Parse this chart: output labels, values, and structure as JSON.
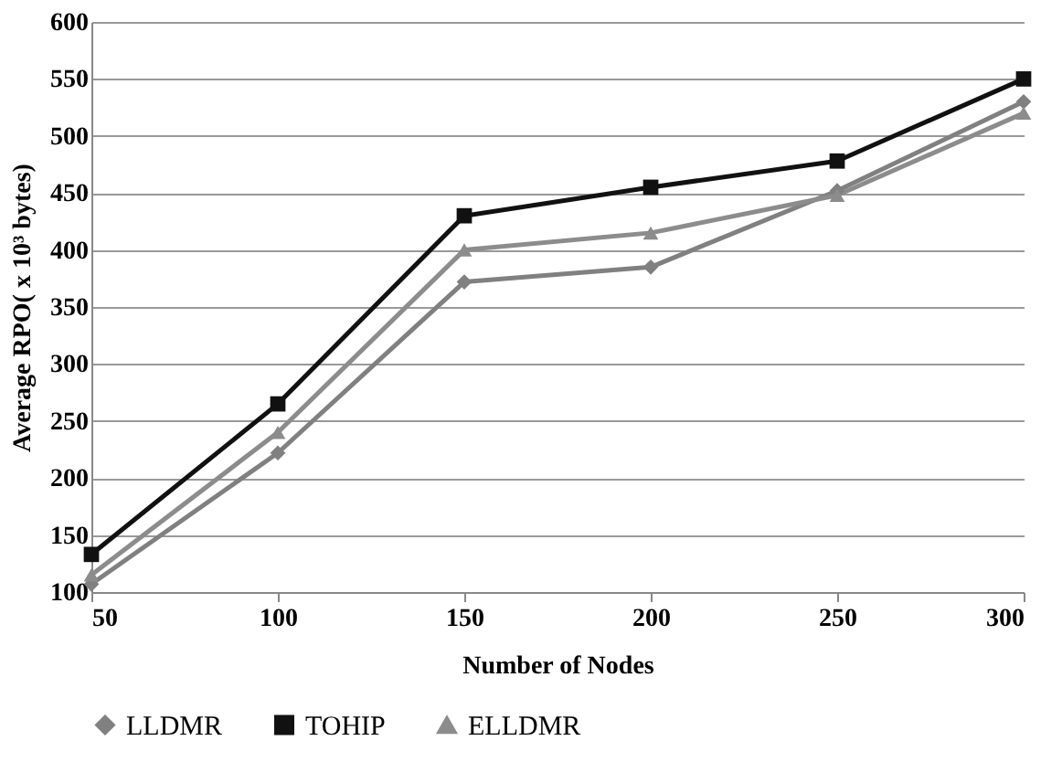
{
  "chart_data": {
    "type": "line",
    "xlabel": "Number of Nodes",
    "ylabel": "Average RPO( x 10³ bytes)",
    "categories": [
      "50",
      "100",
      "150",
      "200",
      "250",
      "300"
    ],
    "series": [
      {
        "name": "LLDMR",
        "color": "#808080",
        "marker": "diamond",
        "values": [
          107,
          222,
          372,
          385,
          452,
          530
        ]
      },
      {
        "name": "TOHIP",
        "color": "#111111",
        "marker": "square",
        "values": [
          133,
          265,
          430,
          455,
          478,
          550
        ]
      },
      {
        "name": "ELLDMR",
        "color": "#8c8c8c",
        "marker": "triangle",
        "values": [
          115,
          240,
          400,
          415,
          448,
          520
        ]
      }
    ],
    "ylim": [
      100,
      600
    ],
    "yticks": [
      100,
      150,
      200,
      250,
      300,
      350,
      400,
      450,
      500,
      550,
      600
    ],
    "grid": "y",
    "legend": "bottom",
    "line_style": "solid"
  }
}
